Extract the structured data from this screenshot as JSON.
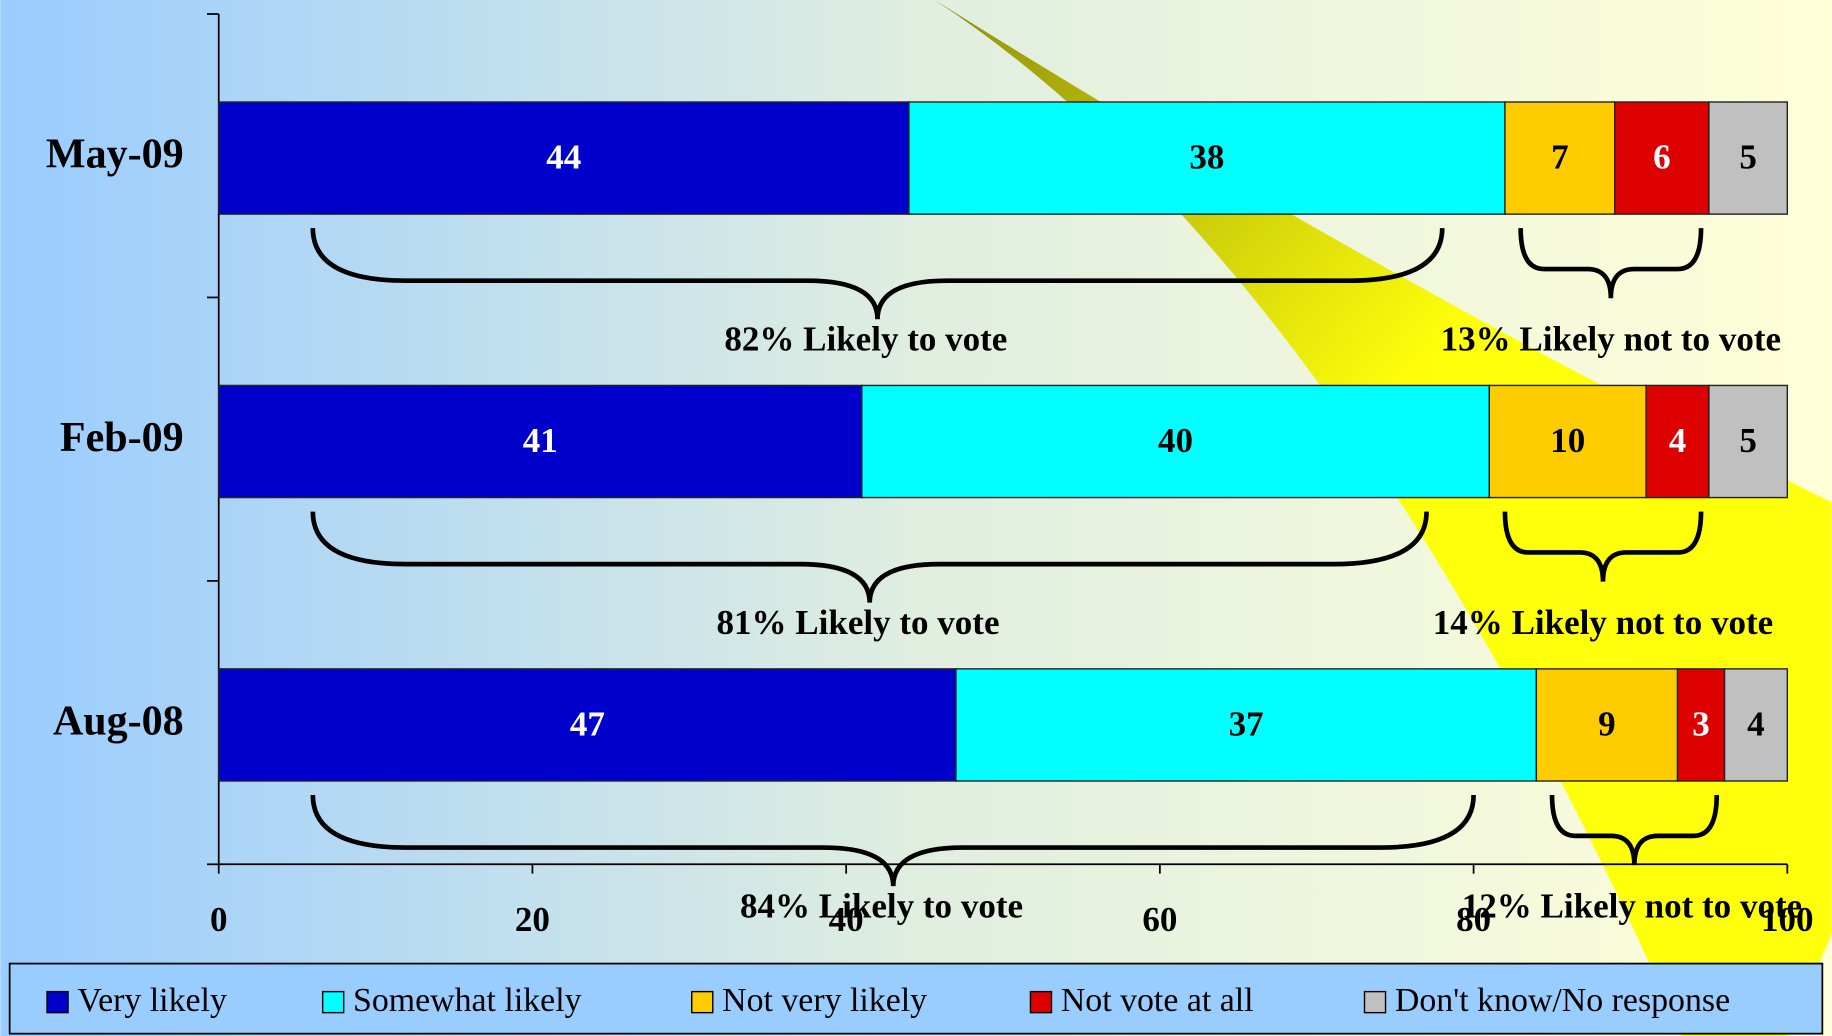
{
  "chart_data": {
    "type": "stacked-bar-horizontal",
    "categories": [
      "May-09",
      "Feb-09",
      "Aug-08"
    ],
    "series": [
      {
        "name": "Very likely",
        "color": "#0000cc",
        "values": [
          44,
          41,
          47
        ]
      },
      {
        "name": "Somewhat likely",
        "color": "#00ffff",
        "values": [
          38,
          40,
          37
        ]
      },
      {
        "name": "Not very likely",
        "color": "#ffcc00",
        "values": [
          7,
          10,
          9
        ]
      },
      {
        "name": "Not vote at all",
        "color": "#dd0000",
        "values": [
          6,
          4,
          3
        ]
      },
      {
        "name": "Don't know/No response",
        "color": "#c0c0c0",
        "values": [
          5,
          5,
          4
        ]
      }
    ],
    "annotations": [
      [
        "82% Likely to vote",
        "13% Likely not to vote"
      ],
      [
        "81% Likely to vote",
        "14% Likely not to vote"
      ],
      [
        "84% Likely to vote",
        "12% Likely not to vote"
      ]
    ],
    "xlim": [
      0,
      100
    ],
    "xticks": [
      0,
      20,
      40,
      60,
      80,
      100
    ],
    "legend": "bottom"
  }
}
